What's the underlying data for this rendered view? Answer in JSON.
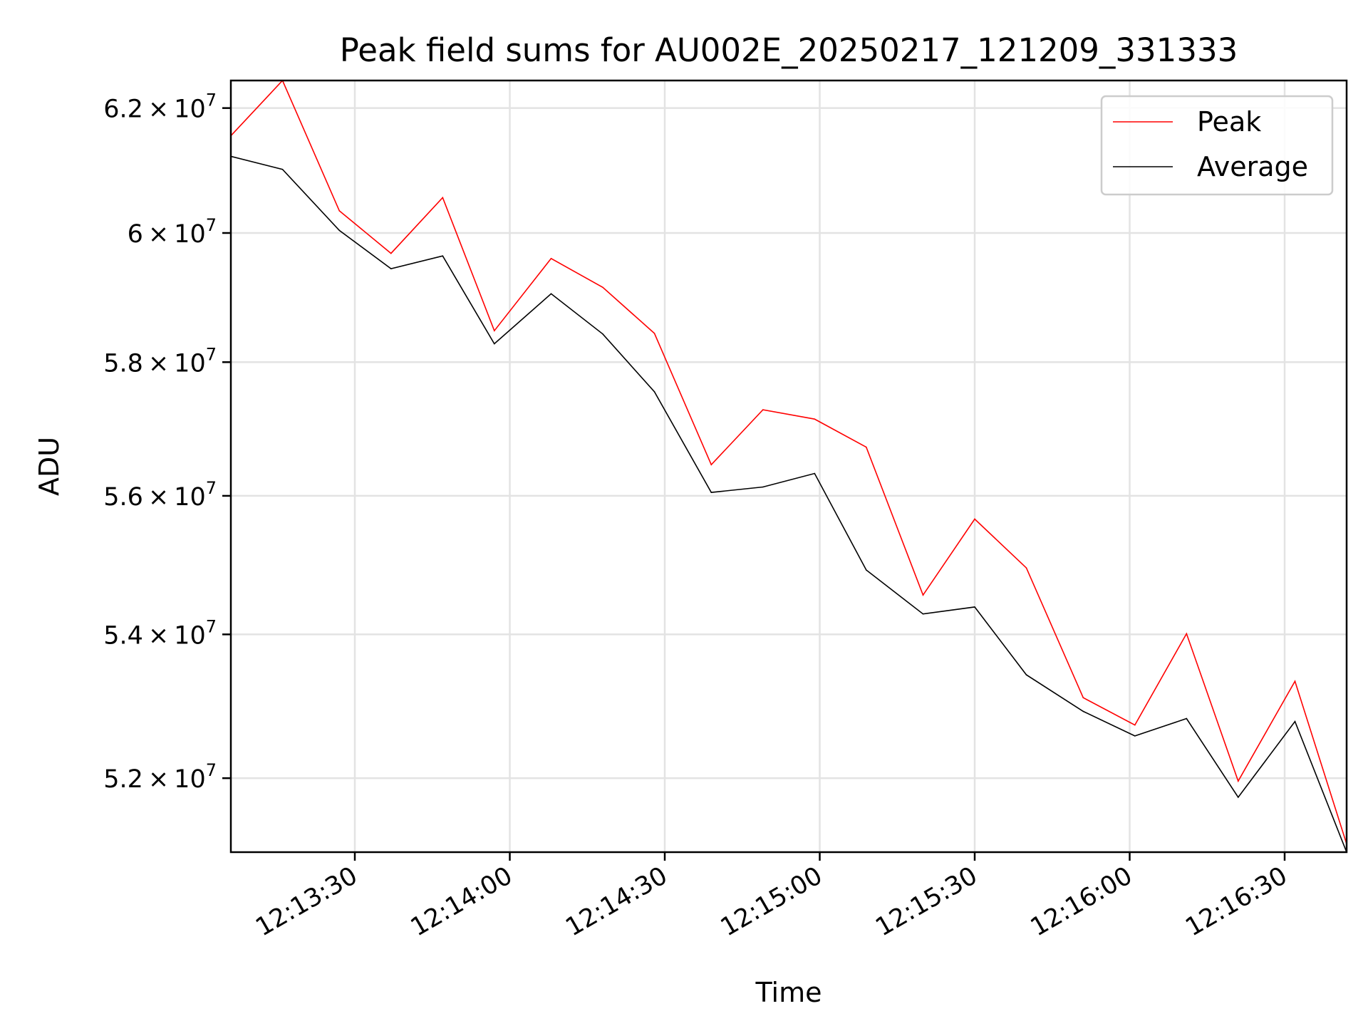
{
  "chart_data": {
    "type": "line",
    "title": "Peak field sums for AU002E_20250217_121209_331333",
    "xlabel": "Time",
    "ylabel": "ADU",
    "yscale": "log",
    "grid": true,
    "legend_position": "top-right",
    "xlim": [
      "12:13:06",
      "12:16:42"
    ],
    "ylim": [
      51000000,
      62450000
    ],
    "x_ticks": [
      "12:13:30",
      "12:14:00",
      "12:14:30",
      "12:15:00",
      "12:15:30",
      "12:16:00",
      "12:16:30"
    ],
    "y_ticks": [
      {
        "value": 52000000,
        "mantissa": "5.2"
      },
      {
        "value": 54000000,
        "mantissa": "5.4"
      },
      {
        "value": 56000000,
        "mantissa": "5.6"
      },
      {
        "value": 58000000,
        "mantissa": "5.8"
      },
      {
        "value": 60000000,
        "mantissa": "6"
      },
      {
        "value": 62000000,
        "mantissa": "6.2"
      }
    ],
    "y_tick_base": "10",
    "y_tick_exponent": "7",
    "x": [
      "12:13:06",
      "12:13:16",
      "12:13:27",
      "12:13:37",
      "12:13:47",
      "12:13:57",
      "12:14:08",
      "12:14:18",
      "12:14:28",
      "12:14:39",
      "12:14:49",
      "12:14:59",
      "12:15:09",
      "12:15:20",
      "12:15:30",
      "12:15:40",
      "12:15:51",
      "12:16:01",
      "12:16:11",
      "12:16:21",
      "12:16:32",
      "12:16:42"
    ],
    "series": [
      {
        "name": "Peak",
        "color": "#ff0000",
        "values": [
          61550000,
          62450000,
          60350000,
          59680000,
          60560000,
          58480000,
          59600000,
          59150000,
          58440000,
          56460000,
          57280000,
          57140000,
          56720000,
          54560000,
          55660000,
          54950000,
          53110000,
          52730000,
          54010000,
          51960000,
          53340000,
          51110000
        ]
      },
      {
        "name": "Average",
        "color": "#000000",
        "values": [
          61220000,
          61010000,
          60040000,
          59440000,
          59640000,
          58280000,
          59050000,
          58430000,
          57550000,
          56050000,
          56130000,
          56330000,
          54920000,
          54290000,
          54390000,
          53430000,
          52920000,
          52580000,
          52820000,
          51740000,
          52780000,
          51000000
        ]
      }
    ]
  }
}
